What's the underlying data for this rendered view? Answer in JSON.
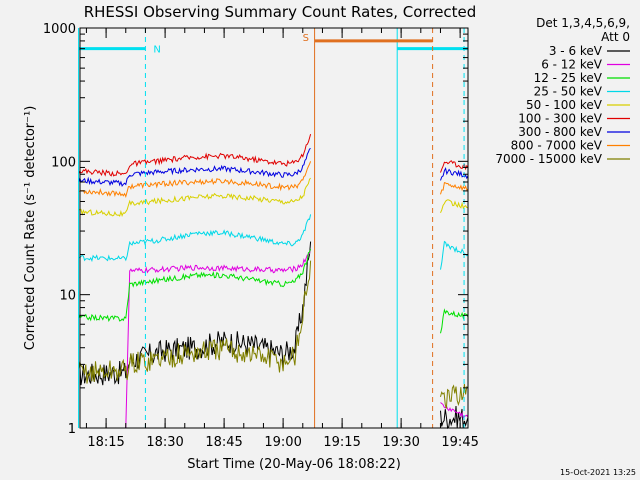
{
  "chart_data": {
    "type": "line",
    "title": "RHESSI Observing Summary Count Rates, Corrected",
    "xlabel": "Start Time (20-May-06 18:08:22)",
    "ylabel": "Corrected Count Rate (s⁻¹ detector⁻¹)",
    "y_scale": "log",
    "ylim": [
      1,
      1000
    ],
    "xlim": [
      "18:08:22",
      "19:47:00"
    ],
    "x_ticks": [
      "18:15",
      "18:30",
      "18:45",
      "19:00",
      "19:15",
      "19:30",
      "19:45"
    ],
    "y_ticks": [
      "1",
      "10",
      "100",
      "1000"
    ],
    "footer": "15-Oct-2021 13:25",
    "legend_header": [
      "Det 1,3,4,5,6,9,",
      "Att 0"
    ],
    "legend_position": "right",
    "series": [
      {
        "name": "3 - 6 keV",
        "color": "#000000",
        "segments": [
          {
            "x": [
              "18:08",
              "18:20",
              "18:21",
              "18:30",
              "18:38",
              "18:45",
              "18:52",
              "19:00",
              "19:03",
              "19:05",
              "19:07"
            ],
            "y": [
              2.5,
              2.6,
              3.2,
              3.8,
              4.0,
              4.5,
              4.2,
              3.6,
              4.0,
              8,
              25
            ]
          },
          {
            "x": [
              "19:40",
              "19:47"
            ],
            "y": [
              1.2,
              1.2
            ]
          }
        ]
      },
      {
        "name": "6 - 12 keV",
        "color": "#e000e0",
        "segments": [
          {
            "x": [
              "18:20",
              "18:21",
              "18:30",
              "18:38",
              "18:45",
              "18:52",
              "19:00",
              "19:03",
              "19:05",
              "19:07"
            ],
            "y": [
              1.0,
              15,
              15.5,
              16,
              15.8,
              15.5,
              15.2,
              15.6,
              17,
              22
            ]
          },
          {
            "x": [
              "19:40",
              "19:47"
            ],
            "y": [
              1.5,
              1.2
            ]
          }
        ]
      },
      {
        "name": "12 - 25 keV",
        "color": "#00e000",
        "segments": [
          {
            "x": [
              "18:08",
              "18:20",
              "18:21",
              "18:30",
              "18:38",
              "18:45",
              "18:52",
              "19:00",
              "19:03",
              "19:05",
              "19:07"
            ],
            "y": [
              6.8,
              6.6,
              12,
              13,
              14,
              14,
              13,
              12,
              12.5,
              15,
              22
            ]
          },
          {
            "x": [
              "19:40",
              "19:41",
              "19:47"
            ],
            "y": [
              5,
              7.5,
              6.8
            ]
          }
        ]
      },
      {
        "name": "25 - 50 keV",
        "color": "#00d8e8",
        "segments": [
          {
            "x": [
              "18:08",
              "18:20",
              "18:21",
              "18:30",
              "18:38",
              "18:45",
              "18:52",
              "19:00",
              "19:03",
              "19:05",
              "19:07"
            ],
            "y": [
              19,
              18.5,
              24,
              26,
              29,
              29,
              27,
              24,
              24,
              28,
              40
            ]
          },
          {
            "x": [
              "19:40",
              "19:41",
              "19:47"
            ],
            "y": [
              15,
              24,
              20
            ]
          }
        ]
      },
      {
        "name": "50 - 100 keV",
        "color": "#d8d000",
        "segments": [
          {
            "x": [
              "18:08",
              "18:20",
              "18:21",
              "18:30",
              "18:38",
              "18:45",
              "18:52",
              "19:00",
              "19:03",
              "19:05",
              "19:07"
            ],
            "y": [
              42,
              40,
              48,
              51,
              54,
              55,
              53,
              50,
              50,
              55,
              75
            ]
          },
          {
            "x": [
              "19:40",
              "19:41",
              "19:47"
            ],
            "y": [
              40,
              50,
              45
            ]
          }
        ]
      },
      {
        "name": "100 - 300 keV",
        "color": "#e00000",
        "segments": [
          {
            "x": [
              "18:08",
              "18:20",
              "18:21",
              "18:30",
              "18:38",
              "18:45",
              "18:52",
              "19:00",
              "19:03",
              "19:05",
              "19:07"
            ],
            "y": [
              85,
              80,
              95,
              102,
              108,
              110,
              104,
              96,
              98,
              112,
              160
            ]
          },
          {
            "x": [
              "19:40",
              "19:41",
              "19:47"
            ],
            "y": [
              80,
              100,
              90
            ]
          }
        ]
      },
      {
        "name": "300 - 800 keV",
        "color": "#0000e0",
        "segments": [
          {
            "x": [
              "18:08",
              "18:20",
              "18:21",
              "18:30",
              "18:38",
              "18:45",
              "18:52",
              "19:00",
              "19:03",
              "19:05",
              "19:07"
            ],
            "y": [
              72,
              68,
              80,
              84,
              87,
              88,
              84,
              79,
              80,
              90,
              125
            ]
          },
          {
            "x": [
              "19:40",
              "19:41",
              "19:47"
            ],
            "y": [
              70,
              85,
              78
            ]
          }
        ]
      },
      {
        "name": "800 - 7000 keV",
        "color": "#ff8000",
        "segments": [
          {
            "x": [
              "18:08",
              "18:20",
              "18:21",
              "18:30",
              "18:38",
              "18:45",
              "18:52",
              "19:00",
              "19:03",
              "19:05",
              "19:07"
            ],
            "y": [
              60,
              57,
              65,
              68,
              70,
              71,
              68,
              64,
              64,
              72,
              100
            ]
          },
          {
            "x": [
              "19:40",
              "19:41",
              "19:47"
            ],
            "y": [
              55,
              68,
              62
            ]
          }
        ]
      },
      {
        "name": "7000 - 15000 keV",
        "color": "#808000",
        "segments": [
          {
            "x": [
              "18:08",
              "18:20",
              "18:21",
              "18:30",
              "18:38",
              "18:45",
              "18:52",
              "19:00",
              "19:03",
              "19:05",
              "19:07"
            ],
            "y": [
              2.6,
              2.7,
              3.0,
              3.4,
              3.7,
              3.9,
              3.6,
              3.1,
              3.5,
              7,
              18
            ]
          },
          {
            "x": [
              "19:40",
              "19:47"
            ],
            "y": [
              1.5,
              2.0
            ]
          }
        ]
      }
    ],
    "annotations": [
      {
        "label": "N",
        "color": "#00e0f0",
        "bars": [
          [
            "18:08",
            "18:25"
          ],
          [
            "19:29",
            "19:47"
          ]
        ],
        "y": 700,
        "lines": [
          {
            "x": "18:08",
            "style": "solid"
          },
          {
            "x": "18:25",
            "style": "dashed"
          },
          {
            "x": "19:29",
            "style": "solid"
          },
          {
            "x": "19:46",
            "style": "dashed"
          }
        ]
      },
      {
        "label": "S",
        "color": "#e07020",
        "bars": [
          [
            "19:08",
            "19:38"
          ]
        ],
        "y": 800,
        "lines": [
          {
            "x": "19:08",
            "style": "solid"
          },
          {
            "x": "19:38",
            "style": "dashed"
          }
        ]
      }
    ]
  }
}
